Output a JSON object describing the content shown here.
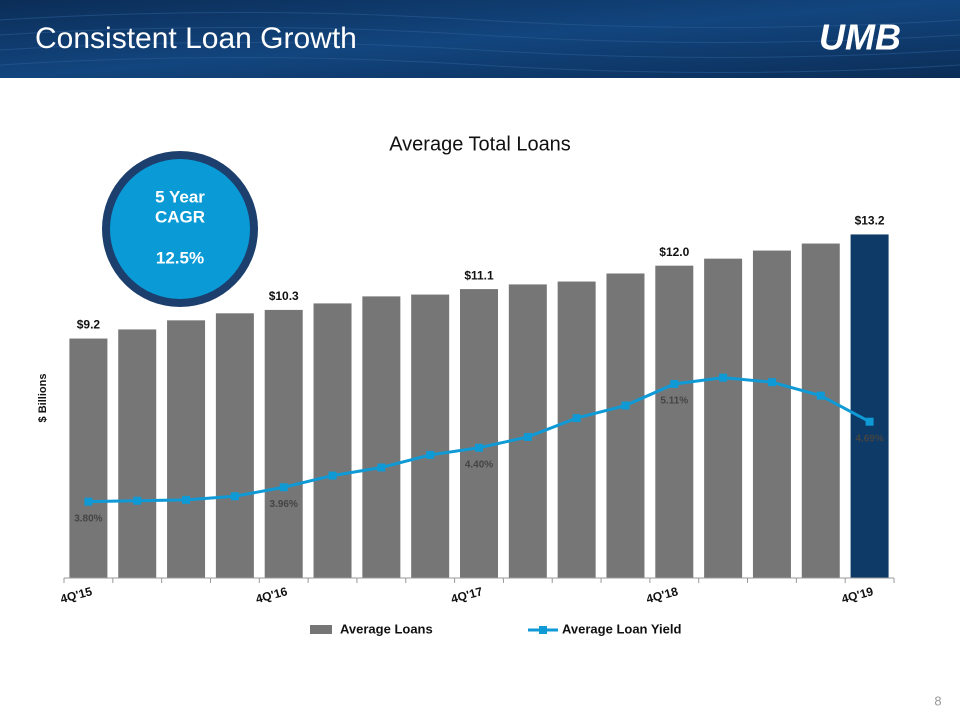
{
  "slide": {
    "title": "Consistent Loan Growth",
    "logo": "UMB",
    "page_number": "8",
    "callout": {
      "lines": [
        "5 Year",
        "CAGR"
      ],
      "value": "12.5%"
    }
  },
  "chart_data": {
    "type": "bar",
    "title": "Average Total Loans",
    "y_label": "$ Billions",
    "categories": [
      "4Q'15",
      null,
      null,
      null,
      "4Q'16",
      null,
      null,
      null,
      "4Q'17",
      null,
      null,
      null,
      "4Q'18",
      null,
      null,
      null,
      "4Q'19"
    ],
    "ylim": [
      0,
      14.6
    ],
    "y2lim": [
      2.95,
      7.18
    ],
    "series": [
      {
        "name": "Average Loans",
        "type": "bar",
        "color": "#767676",
        "colors": [
          "#767676",
          "#767676",
          "#767676",
          "#767676",
          "#767676",
          "#767676",
          "#767676",
          "#767676",
          "#767676",
          "#767676",
          "#767676",
          "#767676",
          "#767676",
          "#767676",
          "#767676",
          "#767676",
          "#0d3a66"
        ],
        "values": [
          9.2,
          9.55,
          9.9,
          10.17,
          10.3,
          10.55,
          10.82,
          10.89,
          11.1,
          11.28,
          11.39,
          11.7,
          12.0,
          12.27,
          12.58,
          12.85,
          13.2
        ],
        "value_labels": [
          "$9.2",
          null,
          null,
          null,
          "$10.3",
          null,
          null,
          null,
          "$11.1",
          null,
          null,
          null,
          "$12.0",
          null,
          null,
          null,
          "$13.2"
        ]
      },
      {
        "name": "Average Loan Yield",
        "type": "line",
        "axis": "y2",
        "color": "#0f9ad6",
        "values": [
          3.8,
          3.81,
          3.82,
          3.86,
          3.96,
          4.09,
          4.18,
          4.32,
          4.4,
          4.52,
          4.73,
          4.87,
          5.11,
          5.18,
          5.13,
          4.98,
          4.69
        ],
        "value_labels": [
          "3.80%",
          null,
          null,
          null,
          "3.96%",
          null,
          null,
          null,
          "4.40%",
          null,
          null,
          null,
          "5.11%",
          null,
          null,
          null,
          "4.69%"
        ]
      }
    ]
  }
}
